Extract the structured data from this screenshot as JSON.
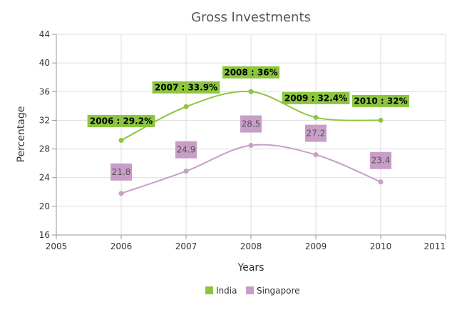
{
  "chart_data": {
    "type": "line",
    "title": "Gross Investments",
    "xlabel": "Years",
    "ylabel": "Percentage",
    "xlim": [
      2005,
      2011
    ],
    "ylim": [
      16,
      44
    ],
    "xticks": [
      "2005",
      "2006",
      "2007",
      "2008",
      "2009",
      "2010",
      "2011"
    ],
    "yticks": [
      "16",
      "20",
      "24",
      "28",
      "32",
      "36",
      "40",
      "44"
    ],
    "grid": true,
    "legend_position": "bottom",
    "series": [
      {
        "name": "India",
        "color": "#8cc63f",
        "x": [
          2006,
          2007,
          2008,
          2009,
          2010
        ],
        "values": [
          29.2,
          33.9,
          36,
          32.4,
          32
        ],
        "labels": [
          "2006 : 29.2%",
          "2007 : 33.9%",
          "2008 : 36%",
          "2009 : 32.4%",
          "2010 : 32%"
        ]
      },
      {
        "name": "Singapore",
        "color": "#c89ec8",
        "x": [
          2006,
          2007,
          2008,
          2009,
          2010
        ],
        "values": [
          21.8,
          24.9,
          28.5,
          27.2,
          23.4
        ],
        "labels": [
          "21.8",
          "24.9",
          "28.5",
          "27.2",
          "23.4"
        ]
      }
    ]
  }
}
